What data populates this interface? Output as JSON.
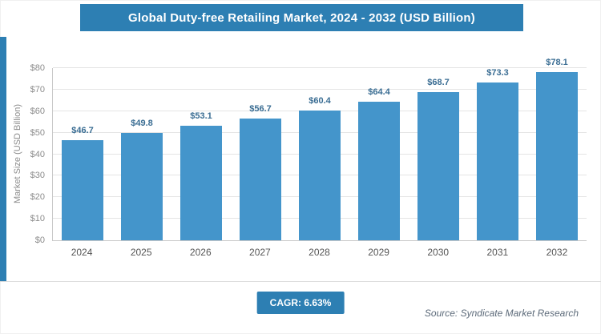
{
  "header": {
    "title": "Global Duty-free Retailing Market, 2024 - 2032 (USD Billion)"
  },
  "colors": {
    "accent": "#2d7fb3",
    "bar_fill": "#4495cb",
    "value_label": "#3a6d93",
    "tick_label": "#8c8c8c",
    "grid_line": "#e4e4e4",
    "axis_line": "#c8c8c8",
    "divider": "#dcdcdc",
    "source_text": "#5d6b7a"
  },
  "chart_data": {
    "type": "bar",
    "title": "Global Duty-free Retailing Market, 2024 - 2032 (USD Billion)",
    "categories": [
      "2024",
      "2025",
      "2026",
      "2027",
      "2028",
      "2029",
      "2030",
      "2031",
      "2032"
    ],
    "values": [
      46.7,
      49.8,
      53.1,
      56.7,
      60.4,
      64.4,
      68.7,
      73.3,
      78.1
    ],
    "value_labels": [
      "$46.7",
      "$49.8",
      "$53.1",
      "$56.7",
      "$60.4",
      "$64.4",
      "$68.7",
      "$73.3",
      "$78.1"
    ],
    "xlabel": "",
    "ylabel": "Market Size (USD Billion)",
    "ylim": [
      0,
      80
    ],
    "yticks": [
      0,
      10,
      20,
      30,
      40,
      50,
      60,
      70,
      80
    ],
    "ytick_labels": [
      "$0",
      "$10",
      "$20",
      "$30",
      "$40",
      "$50",
      "$60",
      "$70",
      "$80"
    ],
    "grid": true,
    "legend": false
  },
  "footer": {
    "cagr_label": "CAGR: 6.63%",
    "source": "Source: Syndicate Market Research"
  }
}
